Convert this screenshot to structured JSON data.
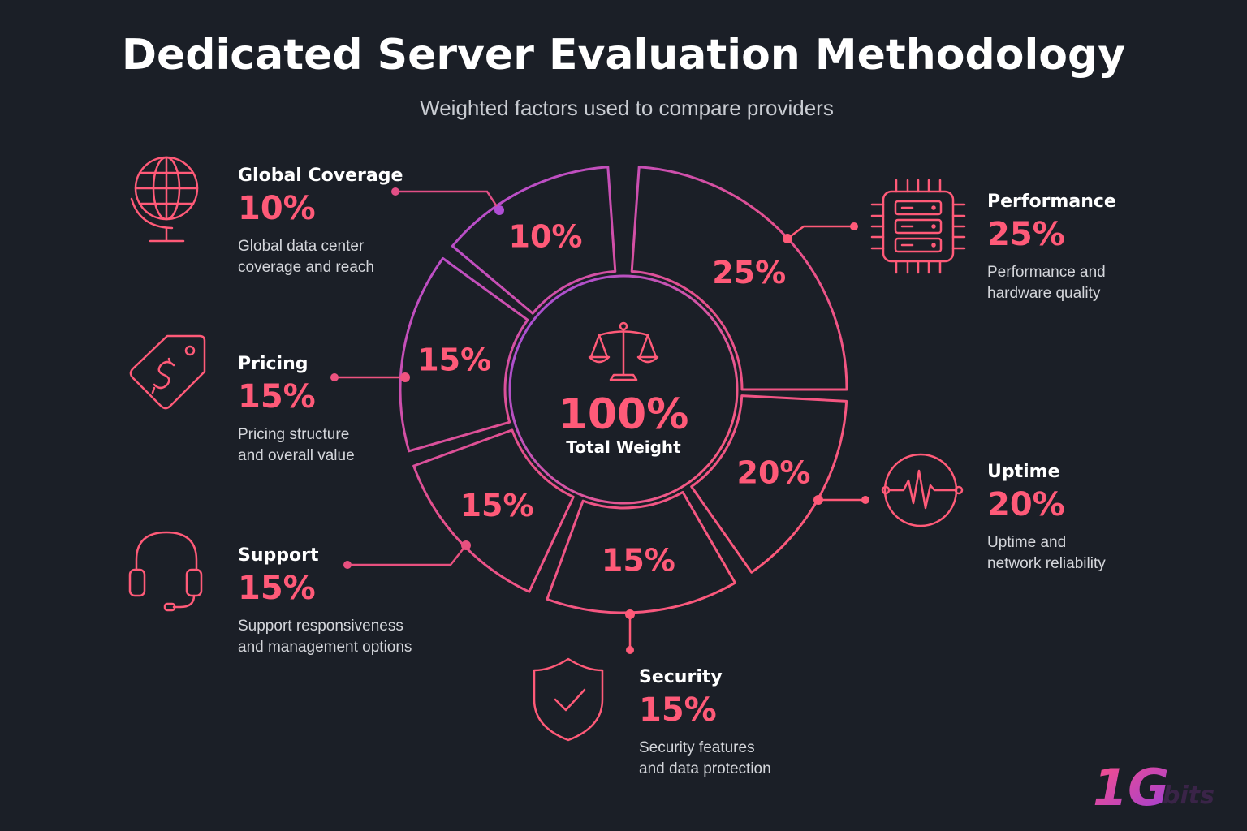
{
  "title": "Dedicated Server Evaluation Methodology",
  "subtitle": "Weighted factors used to compare providers",
  "center": {
    "value": "100%",
    "label": "Total Weight",
    "icon": "scales-icon"
  },
  "factors": [
    {
      "id": "performance",
      "name": "Performance",
      "weight": "25%",
      "description": "Performance and\nhardware quality",
      "icon": "server-chip-icon"
    },
    {
      "id": "uptime",
      "name": "Uptime",
      "weight": "20%",
      "description": "Uptime and\nnetwork reliability",
      "icon": "heartbeat-icon"
    },
    {
      "id": "security",
      "name": "Security",
      "weight": "15%",
      "description": "Security features\nand data protection",
      "icon": "shield-check-icon"
    },
    {
      "id": "support",
      "name": "Support",
      "weight": "15%",
      "description": "Support responsiveness\nand management options",
      "icon": "headset-icon"
    },
    {
      "id": "pricing",
      "name": "Pricing",
      "weight": "15%",
      "description": "Pricing structure\nand overall value",
      "icon": "price-tag-icon"
    },
    {
      "id": "global",
      "name": "Global Coverage",
      "weight": "10%",
      "description": "Global data center\ncoverage and reach",
      "icon": "globe-icon"
    }
  ],
  "segments": [
    {
      "factor": "performance",
      "label": "25%"
    },
    {
      "factor": "uptime",
      "label": "20%"
    },
    {
      "factor": "security",
      "label": "15%"
    },
    {
      "factor": "support",
      "label": "15%"
    },
    {
      "factor": "pricing",
      "label": "15%"
    },
    {
      "factor": "global",
      "label": "10%"
    }
  ],
  "logo": {
    "big": "1G",
    "small": "bits"
  },
  "colors": {
    "background": "#1b1f27",
    "accent_pink": "#ff5a78",
    "accent_purple": "#b04ed6",
    "text": "#ffffff",
    "muted_text": "#d4d6db"
  }
}
